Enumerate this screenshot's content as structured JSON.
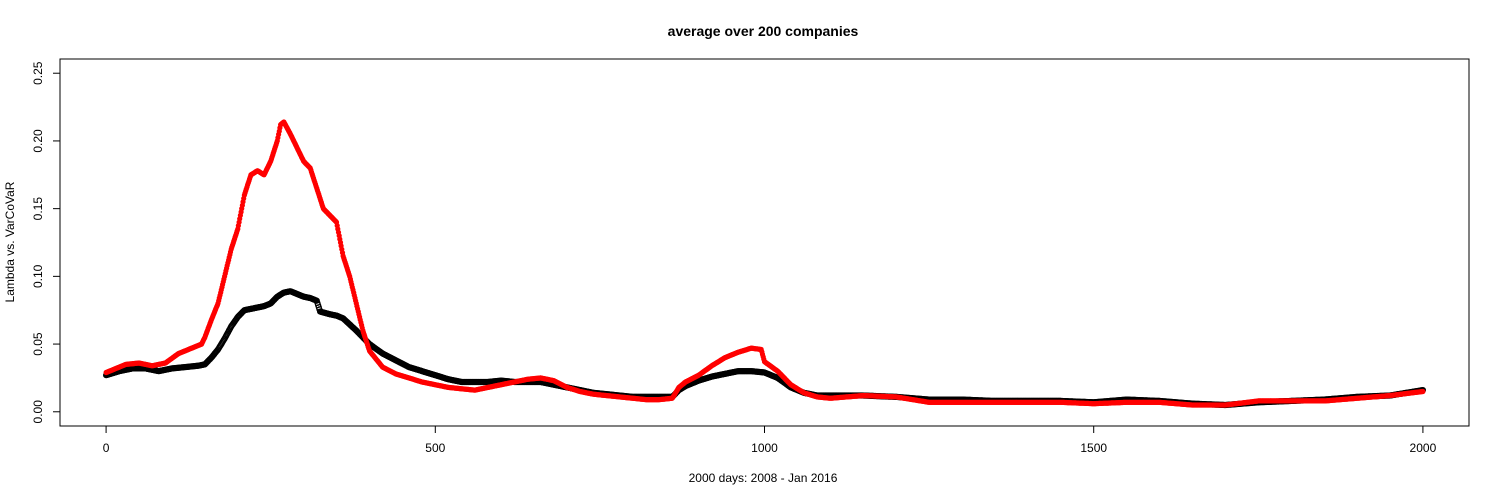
{
  "chart_data": {
    "type": "scatter",
    "title": "average over 200 companies",
    "xlabel": "2000 days: 2008 - Jan 2016",
    "ylabel": "Lambda vs. VarCoVaR",
    "xlim": [
      -70,
      2070
    ],
    "ylim": [
      -0.0105,
      0.2605
    ],
    "xticks": [
      0,
      500,
      1000,
      1500,
      2000
    ],
    "xtick_labels": [
      "0",
      "500",
      "1000",
      "1500",
      "2000"
    ],
    "yticks": [
      0,
      0.05,
      0.1,
      0.15,
      0.2,
      0.25
    ],
    "ytick_labels": [
      "0.00",
      "0.05",
      "0.10",
      "0.15",
      "0.20",
      "0.25"
    ],
    "grid": false,
    "legend": "none",
    "series": [
      {
        "marker": "open-circle",
        "color": "#000000",
        "points": [
          [
            0,
            0.027
          ],
          [
            20,
            0.03
          ],
          [
            40,
            0.032
          ],
          [
            60,
            0.032
          ],
          [
            80,
            0.03
          ],
          [
            100,
            0.032
          ],
          [
            120,
            0.033
          ],
          [
            140,
            0.034
          ],
          [
            150,
            0.035
          ],
          [
            160,
            0.04
          ],
          [
            170,
            0.046
          ],
          [
            180,
            0.054
          ],
          [
            190,
            0.063
          ],
          [
            200,
            0.07
          ],
          [
            210,
            0.075
          ],
          [
            220,
            0.076
          ],
          [
            230,
            0.077
          ],
          [
            240,
            0.078
          ],
          [
            250,
            0.08
          ],
          [
            260,
            0.085
          ],
          [
            270,
            0.088
          ],
          [
            280,
            0.089
          ],
          [
            290,
            0.087
          ],
          [
            300,
            0.085
          ],
          [
            310,
            0.084
          ],
          [
            320,
            0.082
          ],
          [
            325,
            0.074
          ],
          [
            340,
            0.072
          ],
          [
            350,
            0.071
          ],
          [
            360,
            0.069
          ],
          [
            380,
            0.06
          ],
          [
            400,
            0.05
          ],
          [
            420,
            0.043
          ],
          [
            440,
            0.038
          ],
          [
            460,
            0.033
          ],
          [
            480,
            0.03
          ],
          [
            500,
            0.027
          ],
          [
            520,
            0.024
          ],
          [
            540,
            0.022
          ],
          [
            560,
            0.022
          ],
          [
            580,
            0.022
          ],
          [
            600,
            0.023
          ],
          [
            620,
            0.022
          ],
          [
            640,
            0.022
          ],
          [
            660,
            0.022
          ],
          [
            680,
            0.02
          ],
          [
            700,
            0.018
          ],
          [
            720,
            0.016
          ],
          [
            740,
            0.014
          ],
          [
            760,
            0.013
          ],
          [
            780,
            0.012
          ],
          [
            800,
            0.011
          ],
          [
            820,
            0.011
          ],
          [
            840,
            0.011
          ],
          [
            860,
            0.011
          ],
          [
            870,
            0.016
          ],
          [
            880,
            0.019
          ],
          [
            900,
            0.023
          ],
          [
            920,
            0.026
          ],
          [
            940,
            0.028
          ],
          [
            960,
            0.03
          ],
          [
            980,
            0.03
          ],
          [
            1000,
            0.029
          ],
          [
            1020,
            0.025
          ],
          [
            1040,
            0.018
          ],
          [
            1060,
            0.014
          ],
          [
            1080,
            0.012
          ],
          [
            1100,
            0.012
          ],
          [
            1150,
            0.012
          ],
          [
            1200,
            0.011
          ],
          [
            1250,
            0.009
          ],
          [
            1300,
            0.009
          ],
          [
            1350,
            0.008
          ],
          [
            1400,
            0.008
          ],
          [
            1450,
            0.008
          ],
          [
            1500,
            0.007
          ],
          [
            1550,
            0.009
          ],
          [
            1600,
            0.008
          ],
          [
            1650,
            0.006
          ],
          [
            1700,
            0.005
          ],
          [
            1750,
            0.007
          ],
          [
            1800,
            0.008
          ],
          [
            1850,
            0.009
          ],
          [
            1900,
            0.011
          ],
          [
            1950,
            0.012
          ],
          [
            2000,
            0.016
          ]
        ]
      },
      {
        "marker": "filled-circle",
        "color": "#ff0000",
        "points": [
          [
            0,
            0.029
          ],
          [
            15,
            0.032
          ],
          [
            30,
            0.035
          ],
          [
            50,
            0.036
          ],
          [
            70,
            0.034
          ],
          [
            90,
            0.036
          ],
          [
            110,
            0.043
          ],
          [
            130,
            0.047
          ],
          [
            145,
            0.05
          ],
          [
            150,
            0.055
          ],
          [
            160,
            0.068
          ],
          [
            170,
            0.08
          ],
          [
            180,
            0.1
          ],
          [
            190,
            0.12
          ],
          [
            200,
            0.135
          ],
          [
            210,
            0.16
          ],
          [
            220,
            0.175
          ],
          [
            230,
            0.178
          ],
          [
            240,
            0.175
          ],
          [
            250,
            0.185
          ],
          [
            260,
            0.2
          ],
          [
            265,
            0.212
          ],
          [
            270,
            0.214
          ],
          [
            280,
            0.205
          ],
          [
            290,
            0.195
          ],
          [
            300,
            0.185
          ],
          [
            310,
            0.18
          ],
          [
            320,
            0.165
          ],
          [
            330,
            0.15
          ],
          [
            340,
            0.145
          ],
          [
            350,
            0.14
          ],
          [
            360,
            0.115
          ],
          [
            370,
            0.1
          ],
          [
            380,
            0.08
          ],
          [
            390,
            0.06
          ],
          [
            400,
            0.045
          ],
          [
            420,
            0.033
          ],
          [
            440,
            0.028
          ],
          [
            460,
            0.025
          ],
          [
            480,
            0.022
          ],
          [
            500,
            0.02
          ],
          [
            520,
            0.018
          ],
          [
            540,
            0.017
          ],
          [
            560,
            0.016
          ],
          [
            580,
            0.018
          ],
          [
            600,
            0.02
          ],
          [
            620,
            0.022
          ],
          [
            640,
            0.024
          ],
          [
            660,
            0.025
          ],
          [
            680,
            0.023
          ],
          [
            700,
            0.018
          ],
          [
            720,
            0.015
          ],
          [
            740,
            0.013
          ],
          [
            760,
            0.012
          ],
          [
            780,
            0.011
          ],
          [
            800,
            0.01
          ],
          [
            820,
            0.009
          ],
          [
            840,
            0.009
          ],
          [
            860,
            0.01
          ],
          [
            870,
            0.018
          ],
          [
            880,
            0.022
          ],
          [
            900,
            0.027
          ],
          [
            920,
            0.034
          ],
          [
            940,
            0.04
          ],
          [
            960,
            0.044
          ],
          [
            980,
            0.047
          ],
          [
            995,
            0.046
          ],
          [
            1000,
            0.037
          ],
          [
            1020,
            0.03
          ],
          [
            1040,
            0.02
          ],
          [
            1060,
            0.014
          ],
          [
            1080,
            0.011
          ],
          [
            1100,
            0.01
          ],
          [
            1150,
            0.012
          ],
          [
            1200,
            0.011
          ],
          [
            1250,
            0.007
          ],
          [
            1300,
            0.007
          ],
          [
            1350,
            0.007
          ],
          [
            1400,
            0.007
          ],
          [
            1450,
            0.007
          ],
          [
            1500,
            0.006
          ],
          [
            1550,
            0.007
          ],
          [
            1600,
            0.007
          ],
          [
            1650,
            0.005
          ],
          [
            1700,
            0.005
          ],
          [
            1750,
            0.008
          ],
          [
            1800,
            0.008
          ],
          [
            1850,
            0.008
          ],
          [
            1900,
            0.01
          ],
          [
            1950,
            0.012
          ],
          [
            2000,
            0.015
          ]
        ]
      }
    ]
  }
}
